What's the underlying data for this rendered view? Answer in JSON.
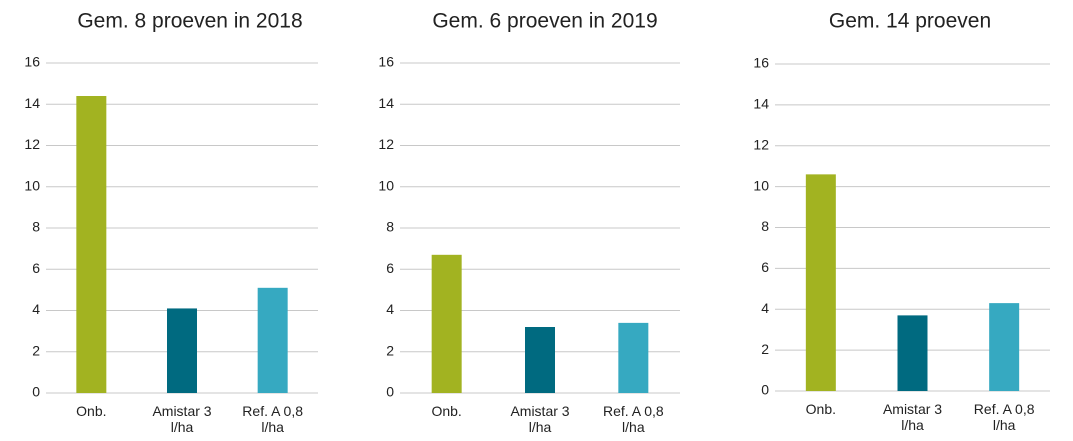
{
  "chart_data": [
    {
      "type": "bar",
      "title": "Gem. 8 proeven in 2018",
      "categories": [
        "Onb.",
        "Amistar 3 l/ha",
        "Ref. A 0,8 l/ha"
      ],
      "values": [
        14.4,
        4.1,
        5.1
      ],
      "colors": [
        "#a2b321",
        "#006a80",
        "#36a9c1"
      ],
      "ylim": [
        0,
        16
      ],
      "yticks": [
        0,
        2,
        4,
        6,
        8,
        10,
        12,
        14,
        16
      ],
      "grid": true
    },
    {
      "type": "bar",
      "title": "Gem. 6 proeven in 2019",
      "categories": [
        "Onb.",
        "Amistar 3 l/ha",
        "Ref. A 0,8 l/ha"
      ],
      "values": [
        6.7,
        3.2,
        3.4
      ],
      "colors": [
        "#a2b321",
        "#006a80",
        "#36a9c1"
      ],
      "ylim": [
        0,
        16
      ],
      "yticks": [
        0,
        2,
        4,
        6,
        8,
        10,
        12,
        14,
        16
      ],
      "grid": true
    },
    {
      "type": "bar",
      "title": "Gem. 14 proeven",
      "categories": [
        "Onb.",
        "Amistar 3 l/ha",
        "Ref. A 0,8 l/ha"
      ],
      "values": [
        10.6,
        3.7,
        4.3
      ],
      "colors": [
        "#a2b321",
        "#006a80",
        "#36a9c1"
      ],
      "ylim": [
        0,
        16
      ],
      "yticks": [
        0,
        2,
        4,
        6,
        8,
        10,
        12,
        14,
        16
      ],
      "grid": true
    }
  ]
}
